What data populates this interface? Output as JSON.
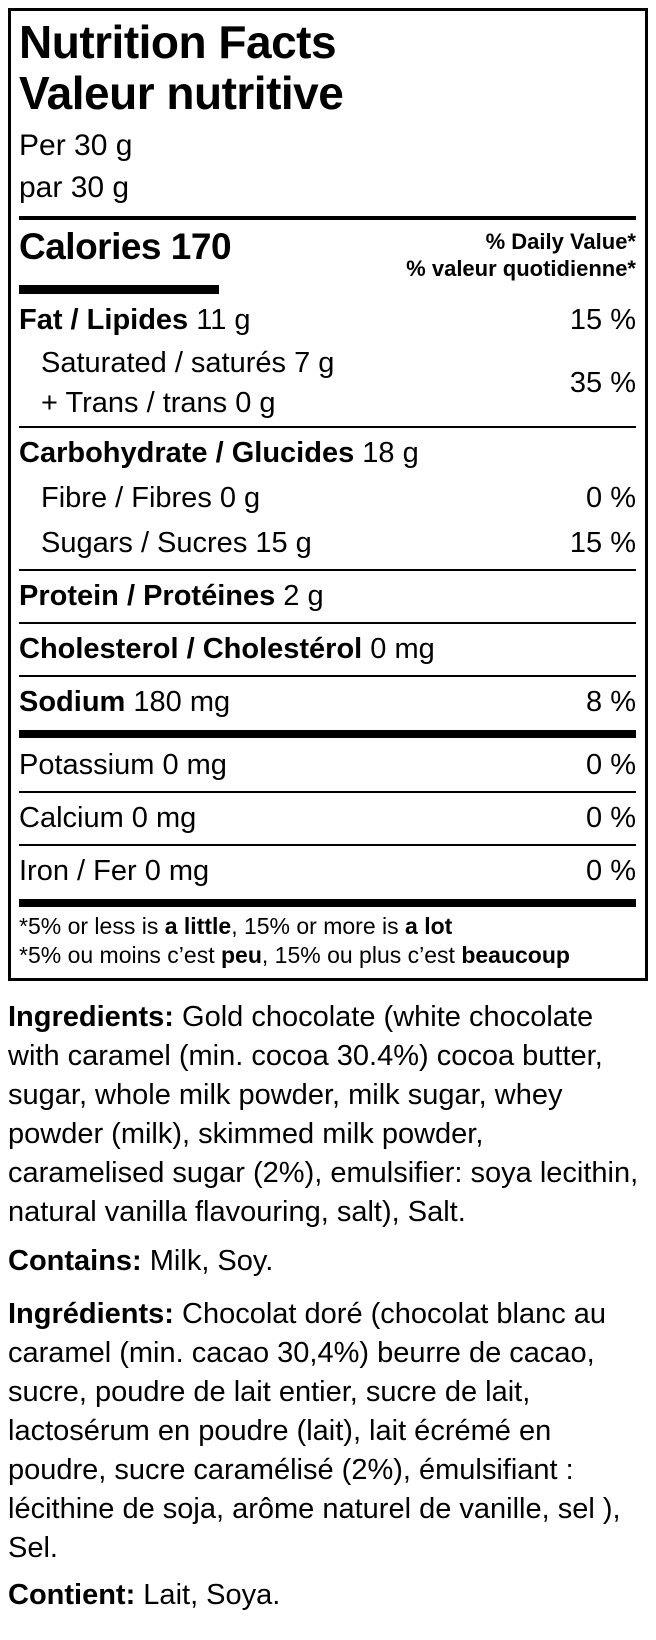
{
  "colors": {
    "text": "#000000",
    "background": "#ffffff",
    "rules": "#000000"
  },
  "nutrition_panel": {
    "title_en": "Nutrition Facts",
    "title_fr": "Valeur nutritive",
    "serving_en": "Per 30 g",
    "serving_fr": "par 30 g",
    "calories_text": "Calories 170",
    "daily_value_header_en": "% Daily Value*",
    "daily_value_header_fr": "% valeur quotidienne*",
    "rows": {
      "fat": {
        "label": "Fat / Lipides",
        "amount": " 11 g",
        "dv": "15 %"
      },
      "saturated_trans": {
        "line1": "Saturated / saturés 7 g",
        "line2": "+ Trans / trans 0 g",
        "dv": "35 %"
      },
      "carbohydrate": {
        "label": "Carbohydrate / Glucides",
        "amount": " 18 g"
      },
      "fibre": {
        "label": "Fibre / Fibres 0 g",
        "dv": "0 %"
      },
      "sugars": {
        "label": "Sugars / Sucres 15 g",
        "dv": "15 %"
      },
      "protein": {
        "label": "Protein / Protéines",
        "amount": " 2 g"
      },
      "cholesterol": {
        "label": "Cholesterol / Cholestérol",
        "amount": " 0 mg"
      },
      "sodium": {
        "label": "Sodium",
        "amount": " 180 mg",
        "dv": "8 %"
      },
      "potassium": {
        "label": "Potassium 0 mg",
        "dv": "0 %"
      },
      "calcium": {
        "label": "Calcium 0 mg",
        "dv": "0 %"
      },
      "iron": {
        "label": "Iron / Fer 0 mg",
        "dv": "0 %"
      }
    },
    "footnote_en": {
      "p1": "*5% or less is ",
      "b1": "a little",
      "p2": ", 15% or more is ",
      "b2": "a lot"
    },
    "footnote_fr": {
      "p1": "*5% ou moins c’est ",
      "b1": "peu",
      "p2": ", 15% ou plus c’est ",
      "b2": "beaucoup"
    }
  },
  "ingredients_section": {
    "ingredients_en": {
      "label": "Ingredients:",
      "text": " Gold chocolate (white chocolate with caramel (min. cocoa 30.4%) cocoa butter, sugar, whole milk powder, milk sugar, whey powder (milk), skimmed milk powder, caramelised sugar (2%), emulsifier: soya lecithin, natural vanilla flavouring, salt), Salt."
    },
    "contains_en": {
      "label": "Contains:",
      "text": " Milk, Soy."
    },
    "ingredients_fr": {
      "label": "Ingrédients:",
      "text": " Chocolat doré (chocolat blanc au caramel (min. cacao 30,4%) beurre de cacao, sucre, poudre de lait entier, sucre de lait, lactosérum en poudre (lait), lait écrémé en poudre, sucre caramélisé (2%), émulsifiant : lécithine de soja, arôme naturel de vanille, sel ), Sel."
    },
    "contains_fr": {
      "label": "Contient:",
      "text": " Lait, Soya."
    }
  }
}
